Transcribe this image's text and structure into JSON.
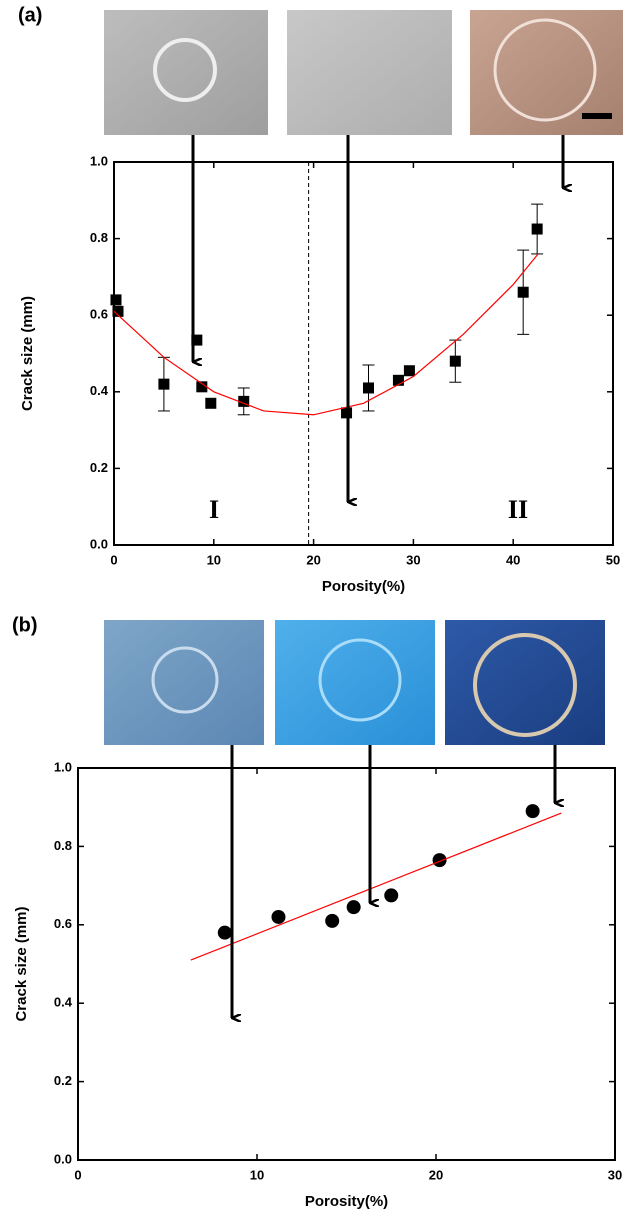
{
  "chart_data": [
    {
      "type": "scatter",
      "panel_label": "(a)",
      "xlabel": "Porosity(%)",
      "ylabel": "Crack size (mm)",
      "xlim": [
        0,
        50
      ],
      "xticks": [
        0,
        10,
        20,
        30,
        40,
        50
      ],
      "ylim": [
        0,
        1
      ],
      "yticks": [
        {
          "value": 0,
          "label": "0.0"
        },
        0.2,
        0.4,
        0.6,
        {
          "value": 0.8,
          "label": "0.8"
        },
        {
          "value": 1,
          "label": "1.0"
        }
      ],
      "divider_x": 19.5,
      "annotations": [
        "I",
        "II"
      ],
      "series": [
        {
          "mode": "markers",
          "marker": "square",
          "color": "#000000",
          "x": [
            0.2,
            0.4,
            5,
            8.3,
            8.8,
            9.7,
            13,
            23.3,
            25.5,
            28.5,
            29.6,
            34.2,
            41,
            42.4
          ],
          "y": [
            0.64,
            0.61,
            0.42,
            0.535,
            0.413,
            0.37,
            0.375,
            0.345,
            0.41,
            0.43,
            0.455,
            0.48,
            0.66,
            0.825
          ],
          "yerr": [
            null,
            null,
            0.07,
            null,
            null,
            null,
            0.035,
            null,
            0.06,
            null,
            null,
            0.055,
            0.11,
            0.065
          ]
        },
        {
          "mode": "line",
          "color": "#ff0000",
          "x": [
            0,
            5,
            10,
            15,
            20,
            25,
            30,
            35,
            40,
            42.5
          ],
          "y": [
            0.61,
            0.49,
            0.4,
            0.35,
            0.34,
            0.37,
            0.44,
            0.55,
            0.68,
            0.76
          ]
        }
      ]
    },
    {
      "type": "scatter",
      "panel_label": "(b)",
      "xlabel": "Porosity(%)",
      "ylabel": "Crack size (mm)",
      "xlim": [
        0,
        30
      ],
      "xticks": [
        0,
        10,
        20,
        30
      ],
      "ylim": [
        0,
        1
      ],
      "yticks": [
        {
          "value": 0,
          "label": "0.0"
        },
        0.2,
        0.4,
        0.6,
        {
          "value": 0.8,
          "label": "0.8"
        },
        {
          "value": 1,
          "label": "1.0"
        }
      ],
      "series": [
        {
          "mode": "markers",
          "marker": "circle",
          "color": "#000000",
          "x": [
            8.2,
            11.2,
            14.2,
            15.4,
            17.5,
            20.2,
            25.4
          ],
          "y": [
            0.58,
            0.62,
            0.61,
            0.645,
            0.675,
            0.765,
            0.89
          ]
        },
        {
          "mode": "line",
          "color": "#ff0000",
          "x": [
            6.3,
            27
          ],
          "y": [
            0.51,
            0.885
          ]
        }
      ]
    }
  ]
}
